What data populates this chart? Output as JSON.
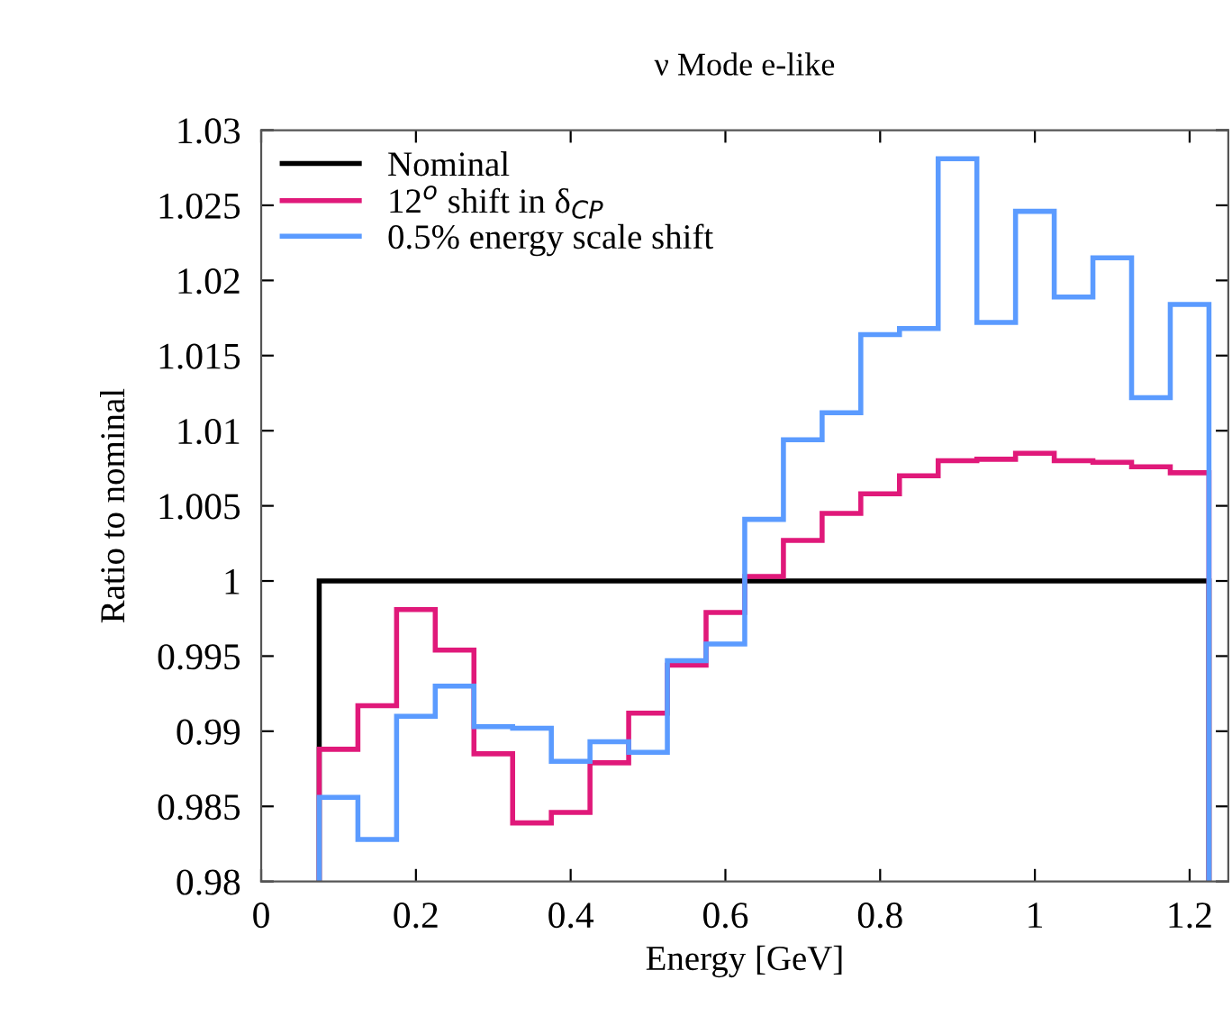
{
  "chart_data": {
    "type": "histogram",
    "title": "ν Mode e-like",
    "xlabel": "Energy [GeV]",
    "ylabel": "Ratio to nominal",
    "bins": [
      0.075,
      0.125,
      0.175,
      0.225,
      0.275,
      0.325,
      0.375,
      0.425,
      0.475,
      0.525,
      0.575,
      0.625,
      0.675,
      0.725,
      0.775,
      0.825,
      0.875,
      0.925,
      0.975,
      1.025,
      1.075,
      1.125,
      1.175,
      1.225
    ],
    "xlim": [
      0,
      1.25
    ],
    "xticks": [
      0,
      0.2,
      0.4,
      0.6,
      0.8,
      1,
      1.2
    ],
    "ylim": [
      0.98,
      1.03
    ],
    "yticks": [
      0.98,
      0.985,
      0.99,
      0.995,
      1,
      1.005,
      1.01,
      1.015,
      1.02,
      1.025,
      1.03
    ],
    "legend": "top left",
    "grid": false,
    "series": [
      {
        "name": "Nominal",
        "color": "#000000",
        "values": [
          1,
          1,
          1,
          1,
          1,
          1,
          1,
          1,
          1,
          1,
          1,
          1,
          1,
          1,
          1,
          1,
          1,
          1,
          1,
          1,
          1,
          1,
          1
        ]
      },
      {
        "name": "12$^{o}$ shift in δ$_{CP}$",
        "color": "#e0197a",
        "values": [
          0.9888,
          0.9917,
          0.9981,
          0.9954,
          0.9885,
          0.9839,
          0.9846,
          0.9879,
          0.9912,
          0.9944,
          0.9979,
          1.0003,
          1.0027,
          1.0045,
          1.0058,
          1.007,
          1.008,
          1.0081,
          1.0085,
          1.008,
          1.0079,
          1.0076,
          1.0072
        ]
      },
      {
        "name": "0.5% energy scale shift",
        "color": "#5b9bff",
        "values": [
          0.9856,
          0.9828,
          0.991,
          0.993,
          0.9903,
          0.9902,
          0.988,
          0.9893,
          0.9886,
          0.9947,
          0.9958,
          1.0041,
          1.0094,
          1.0112,
          1.0164,
          1.0168,
          1.0281,
          1.0172,
          1.0246,
          1.0189,
          1.0215,
          1.0122,
          1.0184
        ]
      }
    ]
  }
}
